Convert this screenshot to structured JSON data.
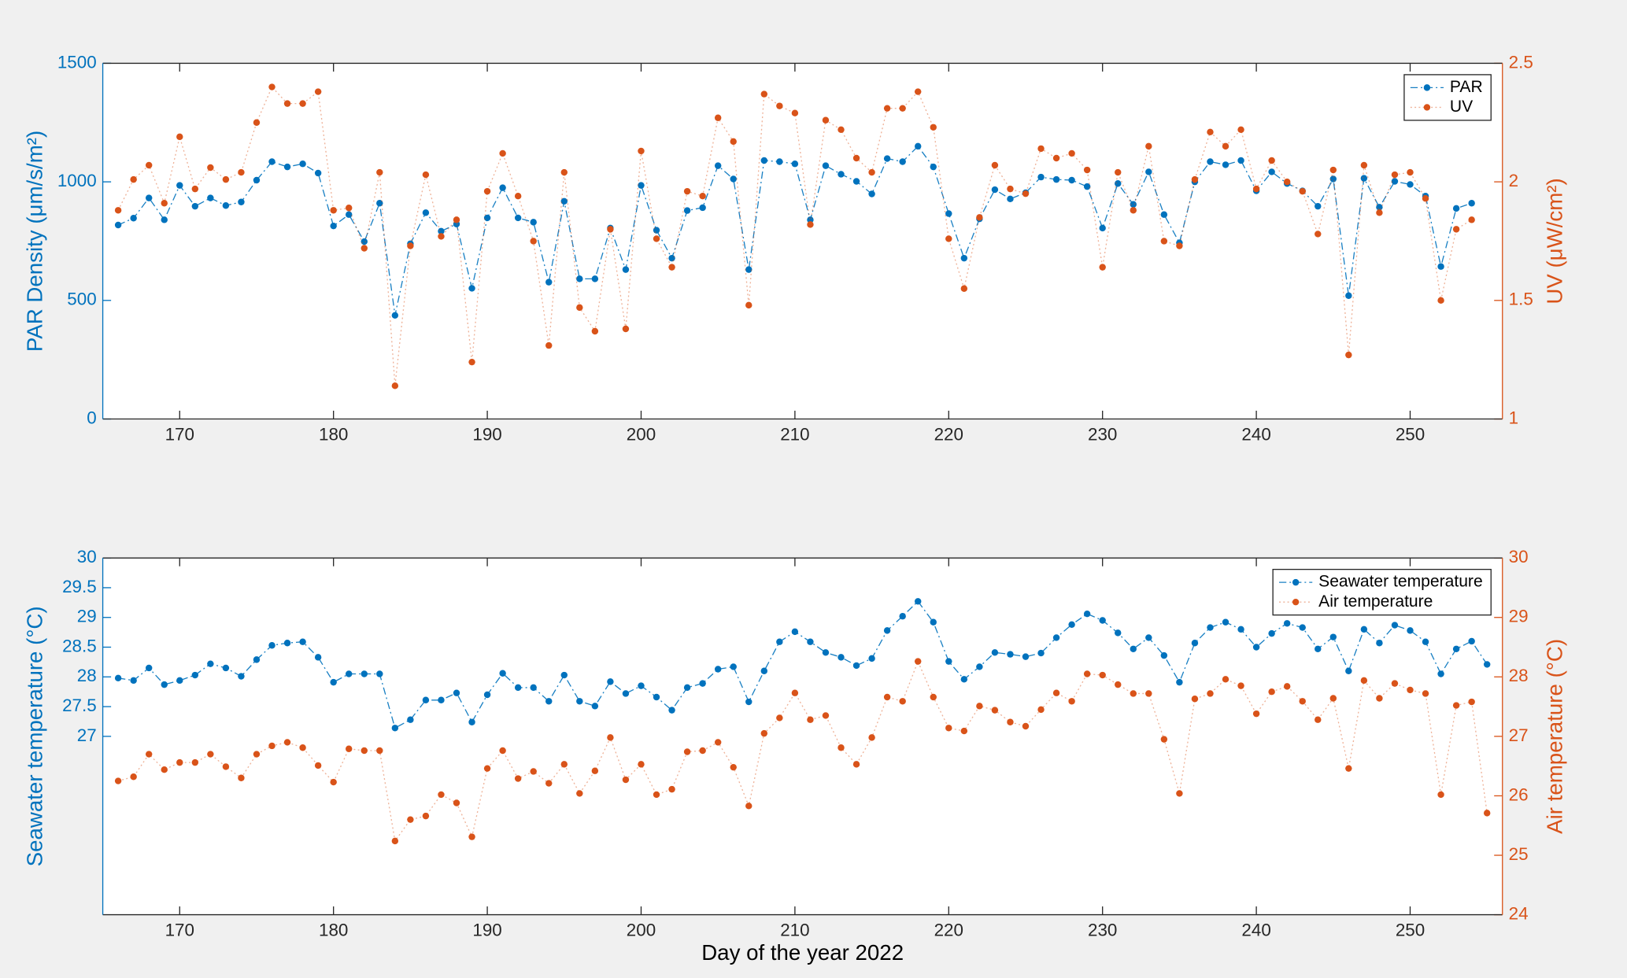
{
  "chart_data": [
    {
      "type": "line",
      "ylabel": "PAR Density (μm/s/m²)",
      "y2label": "UV (μW/cm²)",
      "x": [
        166,
        167,
        168,
        169,
        170,
        171,
        172,
        173,
        174,
        175,
        176,
        177,
        178,
        179,
        180,
        181,
        182,
        183,
        184,
        185,
        186,
        187,
        188,
        189,
        190,
        191,
        192,
        193,
        194,
        195,
        196,
        197,
        198,
        199,
        200,
        201,
        202,
        203,
        204,
        205,
        206,
        207,
        208,
        209,
        210,
        211,
        212,
        213,
        214,
        215,
        216,
        217,
        218,
        219,
        220,
        221,
        222,
        223,
        224,
        225,
        226,
        227,
        228,
        229,
        230,
        231,
        232,
        233,
        234,
        235,
        236,
        237,
        238,
        239,
        240,
        241,
        242,
        243,
        244,
        245,
        246,
        247,
        248,
        249,
        250,
        251,
        252,
        253,
        254
      ],
      "series": [
        {
          "name": "PAR",
          "color": "#0072BD",
          "linestyle": "-.",
          "values": [
            818,
            847,
            932,
            840,
            985,
            897,
            932,
            900,
            915,
            1007,
            1085,
            1063,
            1076,
            1037,
            814,
            862,
            748,
            910,
            437,
            739,
            870,
            792,
            822,
            551,
            848,
            975,
            848,
            830,
            577,
            918,
            591,
            591,
            805,
            630,
            985,
            796,
            678,
            879,
            891,
            1068,
            1012,
            630,
            1090,
            1085,
            1076,
            840,
            1068,
            1032,
            1002,
            949,
            1098,
            1085,
            1150,
            1063,
            866,
            678,
            844,
            967,
            928,
            954,
            1020,
            1010,
            1007,
            980,
            805,
            993,
            905,
            1042,
            862,
            743,
            1000,
            1085,
            1072,
            1090,
            962,
            1042,
            993,
            962,
            897,
            1012,
            520,
            1015,
            893,
            1002,
            989,
            940,
            643,
            888,
            910
          ]
        },
        {
          "name": "UV",
          "color": "#D95319",
          "linestyle": ":",
          "axis": "y2",
          "values": [
            1.88,
            2.01,
            2.07,
            1.91,
            2.19,
            1.97,
            2.06,
            2.01,
            2.04,
            2.25,
            2.4,
            2.33,
            2.33,
            2.38,
            1.88,
            1.89,
            1.72,
            2.04,
            1.14,
            1.73,
            2.03,
            1.77,
            1.84,
            1.24,
            1.96,
            2.12,
            1.94,
            1.75,
            1.31,
            2.04,
            1.47,
            1.37,
            1.8,
            1.38,
            2.13,
            1.76,
            1.64,
            1.96,
            1.94,
            2.27,
            2.17,
            1.48,
            2.37,
            2.32,
            2.29,
            1.82,
            2.26,
            2.22,
            2.1,
            2.04,
            2.31,
            2.31,
            2.38,
            2.23,
            1.76,
            1.55,
            1.85,
            2.07,
            1.97,
            1.95,
            2.14,
            2.1,
            2.12,
            2.05,
            1.64,
            2.04,
            1.88,
            2.15,
            1.75,
            1.73,
            2.01,
            2.21,
            2.15,
            2.22,
            1.97,
            2.09,
            2.0,
            1.96,
            1.78,
            2.05,
            1.27,
            2.07,
            1.87,
            2.03,
            2.04,
            1.93,
            1.5,
            1.8,
            1.84
          ]
        }
      ],
      "xlim": [
        165,
        256
      ],
      "xticks": [
        170,
        180,
        190,
        200,
        210,
        220,
        230,
        240,
        250
      ],
      "ylim": [
        0,
        1500
      ],
      "yticks": [
        0,
        500,
        1000,
        1500
      ],
      "y2lim": [
        1,
        2.5
      ],
      "y2ticks": [
        1,
        1.5,
        2,
        2.5
      ],
      "legend": "upper right"
    },
    {
      "type": "line",
      "xlabel": "Day of the year 2022",
      "ylabel": "Seawater temperature (°C)",
      "y2label": "Air temperature (°C)",
      "x": [
        166,
        167,
        168,
        169,
        170,
        171,
        172,
        173,
        174,
        175,
        176,
        177,
        178,
        179,
        180,
        181,
        182,
        183,
        184,
        185,
        186,
        187,
        188,
        189,
        190,
        191,
        192,
        193,
        194,
        195,
        196,
        197,
        198,
        199,
        200,
        201,
        202,
        203,
        204,
        205,
        206,
        207,
        208,
        209,
        210,
        211,
        212,
        213,
        214,
        215,
        216,
        217,
        218,
        219,
        220,
        221,
        222,
        223,
        224,
        225,
        226,
        227,
        228,
        229,
        230,
        231,
        232,
        233,
        234,
        235,
        236,
        237,
        238,
        239,
        240,
        241,
        242,
        243,
        244,
        245,
        246,
        247,
        248,
        249,
        250,
        251,
        252,
        253,
        254,
        255
      ],
      "series": [
        {
          "name": "Seawater temperature",
          "color": "#0072BD",
          "linestyle": "-.",
          "values": [
            27.98,
            27.94,
            28.15,
            27.87,
            27.94,
            28.03,
            28.22,
            28.15,
            28.01,
            28.29,
            28.53,
            28.57,
            28.59,
            28.33,
            27.91,
            28.05,
            28.05,
            28.05,
            27.14,
            27.28,
            27.61,
            27.61,
            27.73,
            27.24,
            27.7,
            28.06,
            27.82,
            27.82,
            27.59,
            28.03,
            27.59,
            27.51,
            27.92,
            27.72,
            27.85,
            27.66,
            27.44,
            27.82,
            27.89,
            28.13,
            28.17,
            27.58,
            28.1,
            28.59,
            28.76,
            28.59,
            28.41,
            28.33,
            28.19,
            28.31,
            28.78,
            29.02,
            29.27,
            28.92,
            28.26,
            27.96,
            28.17,
            28.41,
            28.38,
            28.34,
            28.4,
            28.66,
            28.88,
            29.06,
            28.95,
            28.74,
            28.47,
            28.66,
            28.36,
            27.91,
            28.57,
            28.83,
            28.92,
            28.8,
            28.5,
            28.73,
            28.9,
            28.83,
            28.47,
            28.67,
            28.1,
            28.8,
            28.57,
            28.87,
            28.78,
            28.59,
            28.05,
            28.47,
            28.6,
            28.21
          ]
        },
        {
          "name": "Air temperature",
          "color": "#D95319",
          "linestyle": ":",
          "axis": "y2",
          "values": [
            26.25,
            26.32,
            26.7,
            26.44,
            26.56,
            26.56,
            26.7,
            26.49,
            26.3,
            26.7,
            26.84,
            26.9,
            26.81,
            26.51,
            26.23,
            26.79,
            26.76,
            26.76,
            25.24,
            25.6,
            25.66,
            26.02,
            25.88,
            25.31,
            26.46,
            26.76,
            26.29,
            26.41,
            26.21,
            26.53,
            26.04,
            26.42,
            26.98,
            26.27,
            26.53,
            26.02,
            26.11,
            26.74,
            26.76,
            26.9,
            26.48,
            25.83,
            27.05,
            27.31,
            27.73,
            27.28,
            27.35,
            26.81,
            26.53,
            26.98,
            27.66,
            27.59,
            28.26,
            27.66,
            27.14,
            27.09,
            27.51,
            27.44,
            27.24,
            27.17,
            27.45,
            27.73,
            27.59,
            28.05,
            28.03,
            27.87,
            27.72,
            27.72,
            26.95,
            26.04,
            27.63,
            27.72,
            27.96,
            27.85,
            27.38,
            27.75,
            27.84,
            27.59,
            27.28,
            27.64,
            26.46,
            27.94,
            27.64,
            27.89,
            27.78,
            27.72,
            26.02,
            27.52,
            27.58,
            25.71
          ]
        }
      ],
      "xlim": [
        165,
        256
      ],
      "xticks": [
        170,
        180,
        190,
        200,
        210,
        220,
        230,
        240,
        250
      ],
      "ylim": [
        24,
        30
      ],
      "yticks": [
        27,
        27.5,
        28,
        28.5,
        29,
        29.5,
        30
      ],
      "y2lim": [
        24,
        30
      ],
      "y2ticks": [
        24,
        25,
        26,
        27,
        28,
        29,
        30
      ],
      "legend": "upper right"
    }
  ]
}
